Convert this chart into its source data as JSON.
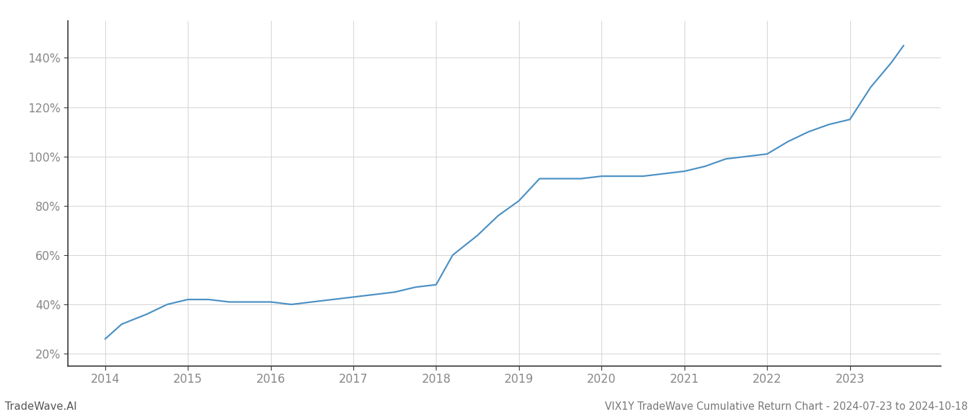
{
  "title": "VIX1Y TradeWave Cumulative Return Chart - 2024-07-23 to 2024-10-18",
  "watermark": "TradeWave.AI",
  "line_color": "#4a90c4",
  "background_color": "#ffffff",
  "grid_color": "#cccccc",
  "x_years": [
    2014,
    2015,
    2016,
    2017,
    2018,
    2019,
    2020,
    2021,
    2022,
    2023
  ],
  "x_data": [
    2014.0,
    2014.2,
    2014.5,
    2014.75,
    2015.0,
    2015.25,
    2015.5,
    2015.75,
    2016.0,
    2016.25,
    2016.5,
    2016.75,
    2017.0,
    2017.25,
    2017.5,
    2017.75,
    2018.0,
    2018.2,
    2018.5,
    2018.75,
    2019.0,
    2019.25,
    2019.5,
    2019.75,
    2020.0,
    2020.25,
    2020.5,
    2020.75,
    2021.0,
    2021.25,
    2021.5,
    2021.75,
    2022.0,
    2022.25,
    2022.5,
    2022.75,
    2023.0,
    2023.25,
    2023.5,
    2023.65
  ],
  "y_data": [
    26,
    32,
    36,
    40,
    42,
    42,
    41,
    41,
    41,
    40,
    41,
    42,
    43,
    44,
    45,
    47,
    48,
    60,
    68,
    76,
    82,
    91,
    91,
    91,
    92,
    92,
    92,
    93,
    94,
    96,
    99,
    100,
    101,
    106,
    110,
    113,
    115,
    128,
    138,
    145
  ],
  "ylim": [
    15,
    155
  ],
  "yticks": [
    20,
    40,
    60,
    80,
    100,
    120,
    140
  ],
  "xlim": [
    2013.55,
    2024.1
  ],
  "line_width": 1.6,
  "title_fontsize": 10.5,
  "watermark_fontsize": 11,
  "tick_fontsize": 12,
  "title_color": "#777777",
  "watermark_color": "#555555",
  "tick_color": "#888888",
  "spine_color": "#333333",
  "bottom_spine_color": "#333333"
}
